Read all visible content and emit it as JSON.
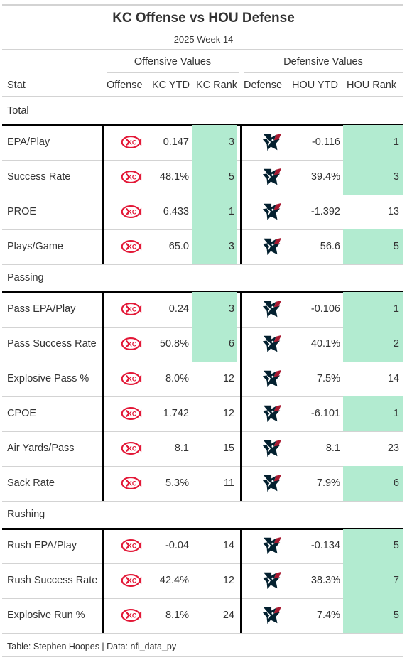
{
  "title": "KC Offense vs HOU Defense",
  "subtitle": "2025 Week 14",
  "spanners": {
    "offense": "Offensive Values",
    "defense": "Defensive Values"
  },
  "columns": {
    "stat": "Stat",
    "offense": "Offense",
    "kc_ytd": "KC YTD",
    "kc_rank": "KC Rank",
    "defense": "Defense",
    "hou_ytd": "HOU YTD",
    "hou_rank": "HOU Rank"
  },
  "highlight_color": "#b2ebd0",
  "groups": [
    {
      "label": "Total",
      "rows": [
        {
          "stat": "EPA/Play",
          "kc_ytd": "0.147",
          "kc_rank": "3",
          "kc_hl": true,
          "hou_ytd": "-0.116",
          "hou_rank": "1",
          "hou_hl": true
        },
        {
          "stat": "Success Rate",
          "kc_ytd": "48.1%",
          "kc_rank": "5",
          "kc_hl": true,
          "hou_ytd": "39.4%",
          "hou_rank": "3",
          "hou_hl": true
        },
        {
          "stat": "PROE",
          "kc_ytd": "6.433",
          "kc_rank": "1",
          "kc_hl": true,
          "hou_ytd": "-1.392",
          "hou_rank": "13",
          "hou_hl": false
        },
        {
          "stat": "Plays/Game",
          "kc_ytd": "65.0",
          "kc_rank": "3",
          "kc_hl": true,
          "hou_ytd": "56.6",
          "hou_rank": "5",
          "hou_hl": true
        }
      ]
    },
    {
      "label": "Passing",
      "rows": [
        {
          "stat": "Pass EPA/Play",
          "kc_ytd": "0.24",
          "kc_rank": "3",
          "kc_hl": true,
          "hou_ytd": "-0.106",
          "hou_rank": "1",
          "hou_hl": true
        },
        {
          "stat": "Pass Success Rate",
          "kc_ytd": "50.8%",
          "kc_rank": "6",
          "kc_hl": true,
          "hou_ytd": "40.1%",
          "hou_rank": "2",
          "hou_hl": true
        },
        {
          "stat": "Explosive Pass %",
          "kc_ytd": "8.0%",
          "kc_rank": "12",
          "kc_hl": false,
          "hou_ytd": "7.5%",
          "hou_rank": "14",
          "hou_hl": false
        },
        {
          "stat": "CPOE",
          "kc_ytd": "1.742",
          "kc_rank": "12",
          "kc_hl": false,
          "hou_ytd": "-6.101",
          "hou_rank": "1",
          "hou_hl": true
        },
        {
          "stat": "Air Yards/Pass",
          "kc_ytd": "8.1",
          "kc_rank": "15",
          "kc_hl": false,
          "hou_ytd": "8.1",
          "hou_rank": "23",
          "hou_hl": false
        },
        {
          "stat": "Sack Rate",
          "kc_ytd": "5.3%",
          "kc_rank": "11",
          "kc_hl": false,
          "hou_ytd": "7.9%",
          "hou_rank": "6",
          "hou_hl": true
        }
      ]
    },
    {
      "label": "Rushing",
      "rows": [
        {
          "stat": "Rush EPA/Play",
          "kc_ytd": "-0.04",
          "kc_rank": "14",
          "kc_hl": false,
          "hou_ytd": "-0.134",
          "hou_rank": "5",
          "hou_hl": true
        },
        {
          "stat": "Rush Success Rate",
          "kc_ytd": "42.4%",
          "kc_rank": "12",
          "kc_hl": false,
          "hou_ytd": "38.3%",
          "hou_rank": "7",
          "hou_hl": true
        },
        {
          "stat": "Explosive Run %",
          "kc_ytd": "8.1%",
          "kc_rank": "24",
          "kc_hl": false,
          "hou_ytd": "7.4%",
          "hou_rank": "5",
          "hou_hl": true
        }
      ]
    }
  ],
  "footer": "Table: Stephen Hoopes | Data: nfl_data_py",
  "icons": {
    "offense": "chiefs-logo-icon",
    "defense": "texans-logo-icon"
  }
}
